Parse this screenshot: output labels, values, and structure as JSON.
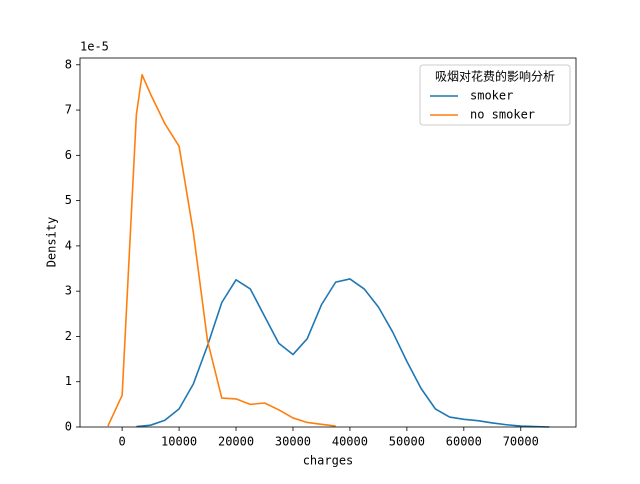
{
  "chart_data": {
    "type": "line",
    "xlabel": "charges",
    "ylabel": "Density",
    "y_offset_label": "1e-5",
    "legend_title": "吸烟对花费的影响分析",
    "legend_position": "upper right",
    "x": [
      -2500,
      0,
      2500,
      3500,
      5000,
      7500,
      10000,
      12500,
      15000,
      17500,
      20000,
      22500,
      25000,
      27500,
      30000,
      32500,
      35000,
      37500,
      40000,
      42500,
      45000,
      47500,
      50000,
      52500,
      55000,
      57500,
      60000,
      62500,
      65000,
      67500,
      70000,
      72500,
      75000
    ],
    "series": [
      {
        "name": "smoker",
        "color": "#1f77b4",
        "values": [
          null,
          null,
          0.01,
          0.02,
          0.04,
          0.15,
          0.4,
          0.95,
          1.8,
          2.75,
          3.25,
          3.05,
          2.45,
          1.85,
          1.6,
          1.95,
          2.7,
          3.2,
          3.27,
          3.05,
          2.65,
          2.1,
          1.45,
          0.85,
          0.4,
          0.22,
          0.17,
          0.14,
          0.09,
          0.05,
          0.02,
          0.01,
          0.0
        ]
      },
      {
        "name": "no smoker",
        "color": "#ff7f0e",
        "values": [
          0.02,
          0.7,
          6.9,
          7.78,
          7.35,
          6.7,
          6.2,
          4.3,
          1.9,
          0.64,
          0.62,
          0.5,
          0.53,
          0.38,
          0.2,
          0.1,
          0.06,
          0.02,
          null,
          null,
          null,
          null,
          null,
          null,
          null,
          null,
          null,
          null,
          null,
          null,
          null,
          null,
          null
        ]
      }
    ],
    "xlim": [
      -7400,
      79700
    ],
    "xticks": [
      0,
      10000,
      20000,
      30000,
      40000,
      50000,
      60000,
      70000
    ],
    "ylim": [
      0,
      8.15
    ],
    "yticks": [
      0,
      1,
      2,
      3,
      4,
      5,
      6,
      7,
      8
    ]
  }
}
